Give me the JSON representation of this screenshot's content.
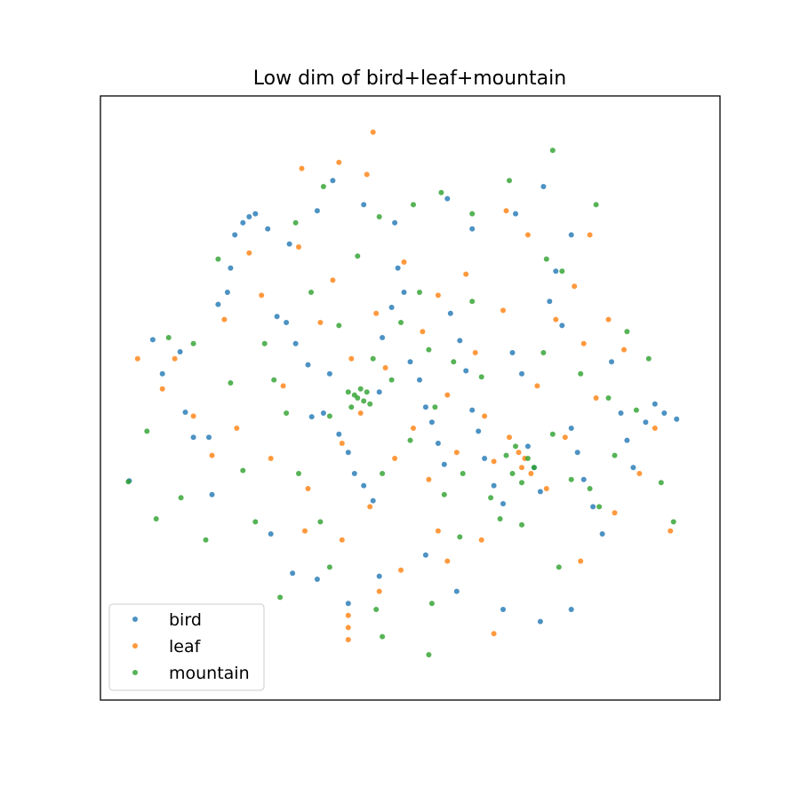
{
  "chart_data": {
    "type": "scatter",
    "title": "Low dim of bird+leaf+mountain",
    "xlabel": "",
    "ylabel": "",
    "xlim": [
      -1.0,
      1.0
    ],
    "ylim": [
      -1.0,
      1.0
    ],
    "grid": false,
    "ticks_visible": false,
    "legend_position": "lower-left",
    "series": [
      {
        "name": "bird",
        "color": "#1f77b4",
        "points": [
          [
            -0.907,
            -0.274
          ],
          [
            -0.831,
            0.193
          ],
          [
            -0.8,
            0.08
          ],
          [
            -0.743,
            0.153
          ],
          [
            -0.726,
            -0.047
          ],
          [
            -0.7,
            -0.13
          ],
          [
            -0.65,
            -0.13
          ],
          [
            -0.64,
            -0.32
          ],
          [
            -0.62,
            0.31
          ],
          [
            -0.59,
            0.35
          ],
          [
            -0.58,
            0.43
          ],
          [
            -0.566,
            0.54
          ],
          [
            -0.54,
            0.58
          ],
          [
            -0.52,
            0.6
          ],
          [
            -0.5,
            0.61
          ],
          [
            -0.46,
            0.56
          ],
          [
            -0.43,
            0.27
          ],
          [
            -0.4,
            0.25
          ],
          [
            -0.37,
            0.18
          ],
          [
            -0.33,
            0.11
          ],
          [
            -0.318,
            -0.062
          ],
          [
            -0.28,
            -0.05
          ],
          [
            -0.26,
            0.08
          ],
          [
            -0.23,
            -0.12
          ],
          [
            -0.2,
            -0.18
          ],
          [
            -0.18,
            -0.25
          ],
          [
            -0.15,
            -0.29
          ],
          [
            -0.12,
            -0.34
          ],
          [
            -0.1,
            0.02
          ],
          [
            -0.09,
            0.2
          ],
          [
            -0.06,
            0.3
          ],
          [
            -0.04,
            0.43
          ],
          [
            -0.02,
            0.35
          ],
          [
            0.0,
            0.12
          ],
          [
            0.03,
            0.06
          ],
          [
            0.05,
            -0.03
          ],
          [
            0.07,
            -0.08
          ],
          [
            0.09,
            -0.15
          ],
          [
            0.11,
            -0.22
          ],
          [
            0.13,
            0.28
          ],
          [
            0.16,
            0.19
          ],
          [
            0.18,
            0.09
          ],
          [
            0.2,
            -0.04
          ],
          [
            0.22,
            -0.11
          ],
          [
            0.24,
            -0.2
          ],
          [
            0.27,
            -0.29
          ],
          [
            0.3,
            -0.35
          ],
          [
            0.33,
            0.15
          ],
          [
            0.36,
            0.08
          ],
          [
            0.38,
            -0.16
          ],
          [
            0.4,
            -0.23
          ],
          [
            0.42,
            -0.31
          ],
          [
            0.45,
            0.32
          ],
          [
            0.47,
            0.42
          ],
          [
            0.49,
            0.24
          ],
          [
            0.52,
            -0.1
          ],
          [
            0.54,
            -0.18
          ],
          [
            0.56,
            -0.27
          ],
          [
            0.59,
            -0.36
          ],
          [
            0.62,
            -0.45
          ],
          [
            0.65,
            0.12
          ],
          [
            0.68,
            -0.05
          ],
          [
            0.7,
            -0.14
          ],
          [
            0.72,
            -0.23
          ],
          [
            0.76,
            -0.08
          ],
          [
            0.79,
            -0.02
          ],
          [
            0.82,
            -0.05
          ],
          [
            0.86,
            -0.07
          ],
          [
            -0.39,
            0.51
          ],
          [
            -0.3,
            0.62
          ],
          [
            -0.25,
            0.72
          ],
          [
            -0.15,
            0.64
          ],
          [
            -0.05,
            0.58
          ],
          [
            0.12,
            0.66
          ],
          [
            0.2,
            0.56
          ],
          [
            0.34,
            0.61
          ],
          [
            0.43,
            0.7
          ],
          [
            0.52,
            0.54
          ],
          [
            -0.45,
            -0.45
          ],
          [
            -0.38,
            -0.58
          ],
          [
            -0.3,
            -0.6
          ],
          [
            -0.2,
            -0.68
          ],
          [
            -0.1,
            -0.59
          ],
          [
            0.05,
            -0.52
          ],
          [
            0.15,
            -0.64
          ],
          [
            0.3,
            -0.7
          ],
          [
            0.42,
            -0.74
          ],
          [
            0.52,
            -0.7
          ]
        ]
      },
      {
        "name": "leaf",
        "color": "#ff7f0e",
        "points": [
          [
            -0.88,
            0.13
          ],
          [
            -0.8,
            0.03
          ],
          [
            -0.76,
            0.13
          ],
          [
            -0.7,
            -0.06
          ],
          [
            -0.64,
            -0.19
          ],
          [
            -0.6,
            0.26
          ],
          [
            -0.56,
            -0.1
          ],
          [
            -0.52,
            0.48
          ],
          [
            -0.48,
            0.34
          ],
          [
            -0.45,
            -0.2
          ],
          [
            -0.41,
            0.04
          ],
          [
            -0.36,
            0.5
          ],
          [
            -0.33,
            -0.3
          ],
          [
            -0.29,
            0.25
          ],
          [
            -0.25,
            0.39
          ],
          [
            -0.22,
            -0.15
          ],
          [
            -0.19,
            0.13
          ],
          [
            -0.16,
            -0.05
          ],
          [
            -0.13,
            -0.36
          ],
          [
            -0.11,
            0.28
          ],
          [
            -0.08,
            0.1
          ],
          [
            -0.05,
            -0.2
          ],
          [
            -0.02,
            0.45
          ],
          [
            0.01,
            -0.1
          ],
          [
            0.04,
            0.22
          ],
          [
            0.06,
            -0.27
          ],
          [
            0.09,
            0.34
          ],
          [
            0.12,
            0.01
          ],
          [
            0.15,
            -0.18
          ],
          [
            0.18,
            0.41
          ],
          [
            0.21,
            0.15
          ],
          [
            0.24,
            -0.06
          ],
          [
            0.27,
            -0.21
          ],
          [
            0.3,
            0.29
          ],
          [
            0.32,
            -0.13
          ],
          [
            0.35,
            -0.18
          ],
          [
            0.36,
            -0.23
          ],
          [
            0.37,
            -0.2
          ],
          [
            0.39,
            -0.25
          ],
          [
            0.41,
            0.04
          ],
          [
            0.44,
            -0.3
          ],
          [
            0.47,
            0.26
          ],
          [
            0.5,
            -0.13
          ],
          [
            0.53,
            0.37
          ],
          [
            0.56,
            0.18
          ],
          [
            0.6,
            0.0
          ],
          [
            0.64,
            0.26
          ],
          [
            0.66,
            -0.38
          ],
          [
            0.69,
            0.16
          ],
          [
            0.74,
            -0.25
          ],
          [
            0.79,
            -0.1
          ],
          [
            0.84,
            -0.44
          ],
          [
            -0.35,
            0.76
          ],
          [
            -0.23,
            0.78
          ],
          [
            -0.12,
            0.88
          ],
          [
            -0.14,
            0.74
          ],
          [
            0.31,
            0.62
          ],
          [
            0.38,
            0.54
          ],
          [
            0.58,
            0.54
          ],
          [
            -0.1,
            -0.64
          ],
          [
            -0.22,
            -0.47
          ],
          [
            -0.34,
            -0.44
          ],
          [
            0.12,
            -0.54
          ],
          [
            0.23,
            -0.47
          ],
          [
            0.27,
            -0.78
          ],
          [
            -0.2,
            -0.76
          ],
          [
            -0.2,
            -0.8
          ],
          [
            -0.2,
            -0.72
          ],
          [
            0.55,
            -0.54
          ],
          [
            -0.03,
            -0.57
          ],
          [
            0.09,
            -0.44
          ]
        ]
      },
      {
        "name": "mountain",
        "color": "#2ca02c",
        "points": [
          [
            -0.91,
            -0.277
          ],
          [
            -0.85,
            -0.11
          ],
          [
            -0.82,
            -0.4
          ],
          [
            -0.78,
            0.2
          ],
          [
            -0.74,
            -0.33
          ],
          [
            -0.7,
            0.18
          ],
          [
            -0.66,
            -0.47
          ],
          [
            -0.62,
            0.46
          ],
          [
            -0.58,
            0.05
          ],
          [
            -0.54,
            -0.24
          ],
          [
            -0.5,
            -0.41
          ],
          [
            -0.47,
            0.18
          ],
          [
            -0.44,
            0.06
          ],
          [
            -0.4,
            -0.05
          ],
          [
            -0.36,
            -0.25
          ],
          [
            -0.32,
            0.35
          ],
          [
            -0.29,
            -0.41
          ],
          [
            -0.26,
            -0.06
          ],
          [
            -0.23,
            0.24
          ],
          [
            -0.2,
            0.02
          ],
          [
            -0.18,
            0.01
          ],
          [
            -0.16,
            0.03
          ],
          [
            -0.15,
            -0.01
          ],
          [
            -0.17,
            0.0
          ],
          [
            -0.14,
            0.02
          ],
          [
            -0.13,
            -0.02
          ],
          [
            -0.19,
            -0.03
          ],
          [
            -0.12,
            0.13
          ],
          [
            -0.09,
            -0.25
          ],
          [
            -0.06,
            0.06
          ],
          [
            -0.03,
            0.25
          ],
          [
            0.0,
            -0.14
          ],
          [
            0.03,
            0.35
          ],
          [
            0.06,
            0.16
          ],
          [
            0.08,
            -0.03
          ],
          [
            0.11,
            -0.32
          ],
          [
            0.14,
            0.12
          ],
          [
            0.17,
            -0.25
          ],
          [
            0.2,
            0.32
          ],
          [
            0.23,
            0.07
          ],
          [
            0.26,
            -0.33
          ],
          [
            0.29,
            -0.4
          ],
          [
            0.31,
            -0.19
          ],
          [
            0.33,
            -0.25
          ],
          [
            0.34,
            -0.16
          ],
          [
            0.36,
            -0.28
          ],
          [
            0.38,
            -0.2
          ],
          [
            0.4,
            -0.23
          ],
          [
            0.43,
            0.15
          ],
          [
            0.46,
            -0.12
          ],
          [
            0.49,
            0.42
          ],
          [
            0.52,
            -0.27
          ],
          [
            0.55,
            0.08
          ],
          [
            0.58,
            -0.3
          ],
          [
            0.61,
            -0.36
          ],
          [
            0.64,
            0.0
          ],
          [
            0.66,
            -0.19
          ],
          [
            0.7,
            0.22
          ],
          [
            0.73,
            -0.04
          ],
          [
            0.77,
            0.13
          ],
          [
            0.81,
            -0.28
          ],
          [
            0.85,
            -0.41
          ],
          [
            -0.37,
            0.58
          ],
          [
            -0.28,
            0.7
          ],
          [
            -0.17,
            0.47
          ],
          [
            -0.1,
            0.6
          ],
          [
            0.01,
            0.64
          ],
          [
            0.1,
            0.68
          ],
          [
            0.2,
            0.61
          ],
          [
            0.32,
            0.72
          ],
          [
            0.46,
            0.82
          ],
          [
            -0.42,
            -0.66
          ],
          [
            -0.26,
            -0.56
          ],
          [
            -0.11,
            -0.7
          ],
          [
            0.07,
            -0.68
          ],
          [
            0.16,
            -0.46
          ],
          [
            0.36,
            -0.42
          ],
          [
            0.48,
            -0.56
          ],
          [
            -0.09,
            -0.79
          ],
          [
            0.06,
            -0.85
          ],
          [
            0.44,
            0.46
          ],
          [
            0.6,
            0.64
          ]
        ]
      }
    ]
  }
}
